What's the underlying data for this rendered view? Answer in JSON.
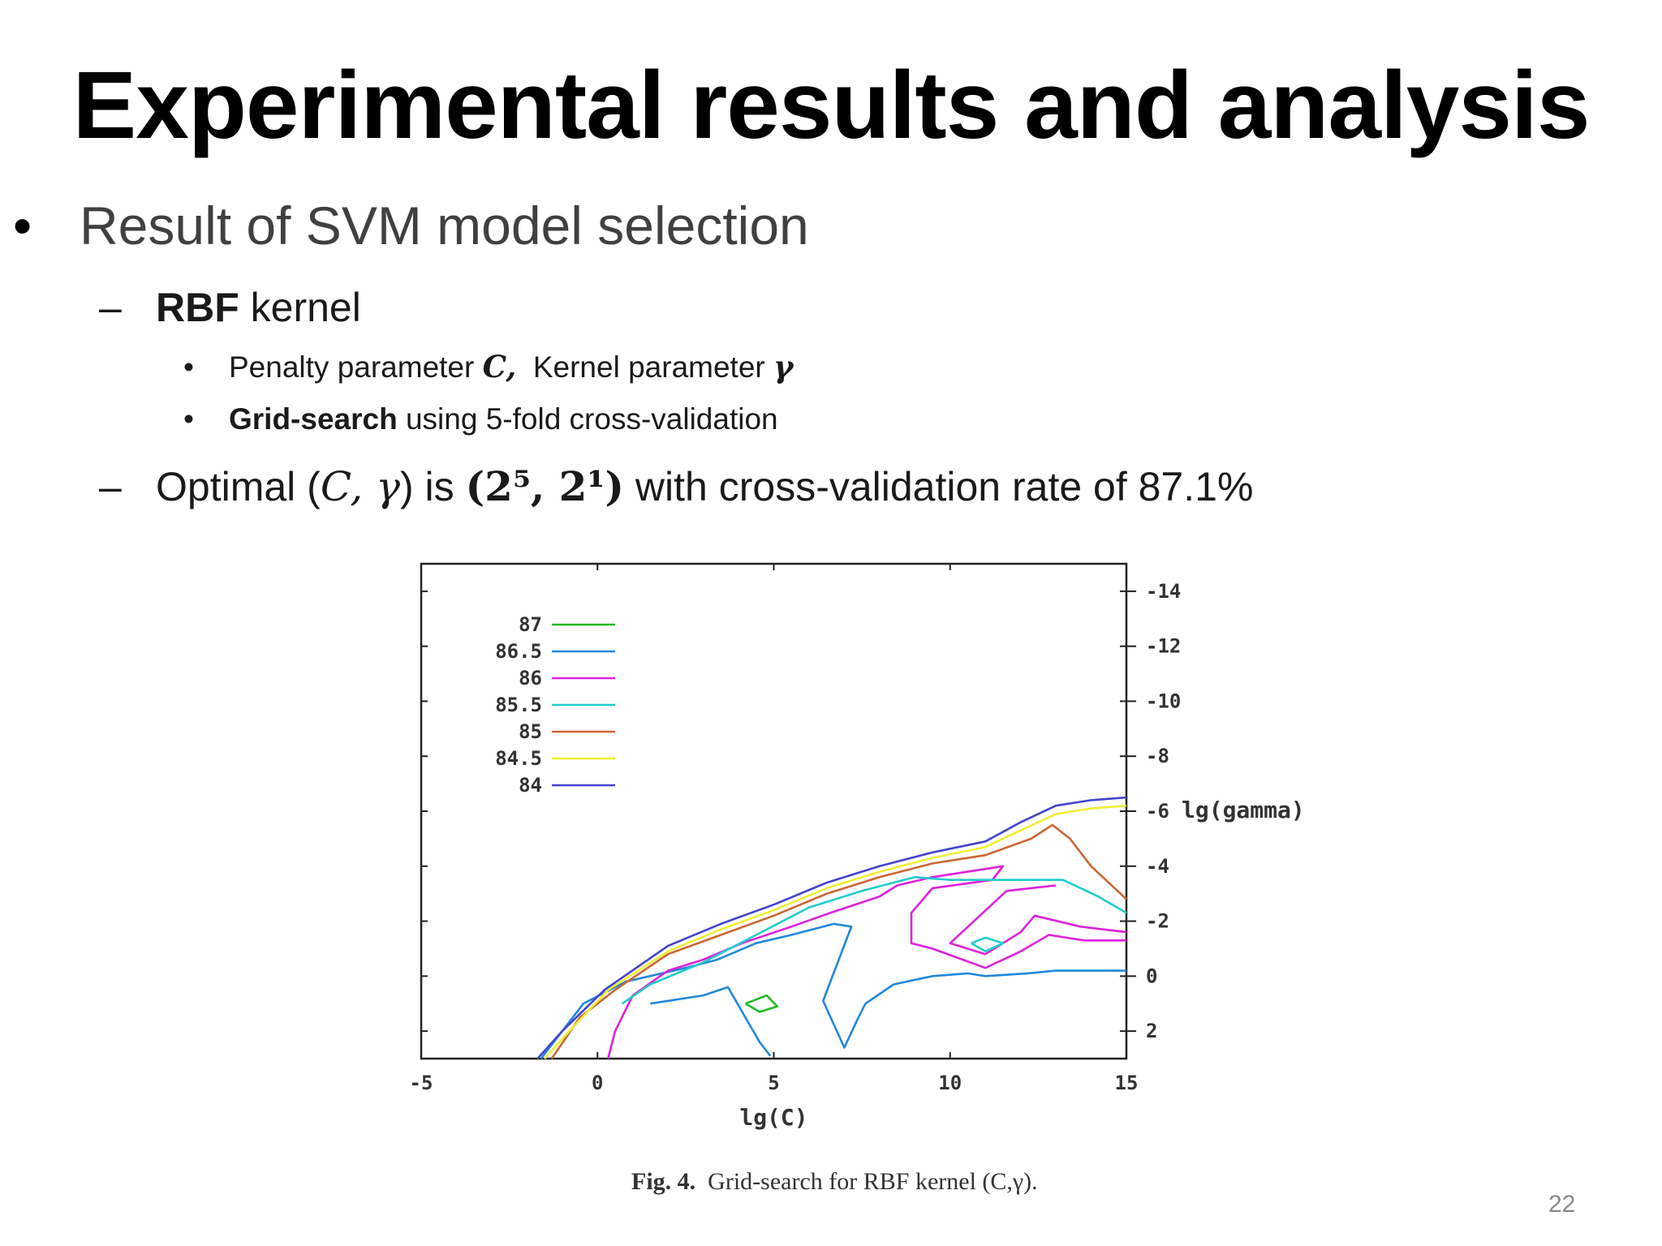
{
  "slide": {
    "title": "Experimental results and analysis",
    "page_number": "22"
  },
  "bullets": {
    "l1": "Result of SVM model selection",
    "rbf_bold": "RBF",
    "rbf_rest": " kernel",
    "penalty_text": "Penalty parameter ",
    "penalty_sym": "C,",
    "kernel_text": "  Kernel parameter ",
    "kernel_sym": "γ",
    "grid_bold": "Grid-search",
    "grid_rest": " using 5-fold cross-validation",
    "opt_pre": "Optimal (",
    "opt_sym": "C, γ",
    "opt_mid": ") is ",
    "opt_val": "(2⁵, 2¹)",
    "opt_post": " with cross-validation rate of 87.1%"
  },
  "figure": {
    "caption_bold": "Fig. 4.",
    "caption_rest": "  Grid-search for RBF kernel (C,γ)."
  },
  "chart_data": {
    "type": "contour",
    "xlabel": "lg(C)",
    "ylabel": "lg(gamma)",
    "xlim": [
      -5,
      15
    ],
    "ylim": [
      3,
      -15
    ],
    "x_ticks": [
      "-5",
      "0",
      "5",
      "10",
      "15"
    ],
    "y_ticks": [
      "-14",
      "-12",
      "-10",
      "-8",
      "-6",
      "-4",
      "-2",
      "0",
      "2"
    ],
    "legend_position": "top-left",
    "series": [
      {
        "name": "87",
        "color": "#22bb22",
        "segments": [
          [
            [
              4.2,
              1.0
            ],
            [
              4.8,
              0.7
            ],
            [
              5.1,
              1.1
            ],
            [
              4.6,
              1.3
            ],
            [
              4.2,
              1.0
            ]
          ]
        ]
      },
      {
        "name": "86.5",
        "color": "#2288dd",
        "segments": [
          [
            [
              -1.6,
              3.0
            ],
            [
              -0.4,
              1.0
            ],
            [
              0.8,
              0.2
            ],
            [
              2.5,
              -0.3
            ],
            [
              3.4,
              -0.6
            ],
            [
              4.5,
              -1.2
            ],
            [
              5.5,
              -1.5
            ],
            [
              6.7,
              -1.9
            ],
            [
              7.2,
              -1.8
            ],
            [
              6.4,
              0.9
            ],
            [
              7.0,
              2.6
            ],
            [
              7.4,
              1.5
            ],
            [
              7.6,
              1.0
            ],
            [
              8.4,
              0.3
            ],
            [
              9.5,
              0.0
            ],
            [
              10.5,
              -0.1
            ],
            [
              11.0,
              0.0
            ],
            [
              12.2,
              -0.1
            ],
            [
              13.0,
              -0.2
            ],
            [
              14.0,
              -0.2
            ],
            [
              15.0,
              -0.2
            ]
          ],
          [
            [
              1.5,
              1.0
            ],
            [
              3.0,
              0.7
            ],
            [
              3.7,
              0.4
            ],
            [
              4.6,
              2.4
            ],
            [
              4.9,
              2.9
            ]
          ]
        ]
      },
      {
        "name": "86",
        "color": "#dd22dd",
        "segments": [
          [
            [
              0.3,
              3.0
            ],
            [
              0.5,
              2.0
            ],
            [
              1.0,
              0.7
            ],
            [
              2.0,
              -0.2
            ],
            [
              3.0,
              -0.6
            ],
            [
              4.1,
              -1.2
            ],
            [
              5.5,
              -1.8
            ],
            [
              6.6,
              -2.3
            ],
            [
              8.0,
              -2.9
            ],
            [
              8.5,
              -3.3
            ],
            [
              9.5,
              -3.6
            ],
            [
              11.5,
              -4.0
            ],
            [
              11.2,
              -3.5
            ],
            [
              9.5,
              -3.2
            ],
            [
              8.9,
              -2.3
            ],
            [
              8.9,
              -1.2
            ],
            [
              9.5,
              -1.0
            ],
            [
              11.0,
              -0.3
            ],
            [
              12.0,
              -0.9
            ],
            [
              12.8,
              -1.5
            ],
            [
              13.8,
              -1.3
            ],
            [
              15.0,
              -1.3
            ]
          ],
          [
            [
              15.0,
              -1.6
            ],
            [
              13.7,
              -1.8
            ],
            [
              12.4,
              -2.2
            ],
            [
              12.0,
              -1.6
            ],
            [
              11.0,
              -0.8
            ],
            [
              10.0,
              -1.2
            ],
            [
              11.6,
              -3.1
            ],
            [
              13.0,
              -3.3
            ]
          ]
        ]
      },
      {
        "name": "85.5",
        "color": "#22cccc",
        "segments": [
          [
            [
              0.7,
              1.0
            ],
            [
              1.5,
              0.3
            ],
            [
              3.0,
              -0.5
            ],
            [
              4.5,
              -1.5
            ],
            [
              6.0,
              -2.5
            ],
            [
              7.5,
              -3.1
            ],
            [
              9.0,
              -3.6
            ],
            [
              10.0,
              -3.5
            ],
            [
              12.0,
              -3.5
            ],
            [
              13.2,
              -3.5
            ],
            [
              14.2,
              -2.9
            ],
            [
              15.0,
              -2.3
            ]
          ],
          [
            [
              10.6,
              -1.2
            ],
            [
              11.0,
              -1.4
            ],
            [
              11.5,
              -1.2
            ],
            [
              11.0,
              -0.9
            ],
            [
              10.6,
              -1.2
            ]
          ]
        ]
      },
      {
        "name": "85",
        "color": "#cc6633",
        "segments": [
          [
            [
              -1.3,
              3.0
            ],
            [
              -0.5,
              1.5
            ],
            [
              0.5,
              0.5
            ],
            [
              2.0,
              -0.8
            ],
            [
              3.5,
              -1.5
            ],
            [
              5.0,
              -2.2
            ],
            [
              6.5,
              -3.0
            ],
            [
              8.0,
              -3.6
            ],
            [
              9.5,
              -4.1
            ],
            [
              11.0,
              -4.4
            ],
            [
              12.3,
              -5.0
            ],
            [
              12.9,
              -5.5
            ],
            [
              13.4,
              -5.0
            ],
            [
              14.0,
              -4.0
            ],
            [
              15.0,
              -2.8
            ]
          ]
        ]
      },
      {
        "name": "84.5",
        "color": "#eeee33",
        "segments": [
          [
            [
              -1.5,
              3.0
            ],
            [
              -0.8,
              2.0
            ],
            [
              0.3,
              0.5
            ],
            [
              2.0,
              -0.9
            ],
            [
              3.5,
              -1.7
            ],
            [
              5.0,
              -2.4
            ],
            [
              6.5,
              -3.2
            ],
            [
              8.0,
              -3.8
            ],
            [
              9.5,
              -4.3
            ],
            [
              11.0,
              -4.7
            ],
            [
              12.0,
              -5.3
            ],
            [
              13.0,
              -5.9
            ],
            [
              14.0,
              -6.1
            ],
            [
              15.0,
              -6.2
            ]
          ]
        ]
      },
      {
        "name": "84",
        "color": "#4444cc",
        "segments": [
          [
            [
              -1.7,
              3.0
            ],
            [
              -1.0,
              2.0
            ],
            [
              0.2,
              0.5
            ],
            [
              2.0,
              -1.1
            ],
            [
              3.5,
              -1.9
            ],
            [
              5.0,
              -2.6
            ],
            [
              6.5,
              -3.4
            ],
            [
              8.0,
              -4.0
            ],
            [
              9.5,
              -4.5
            ],
            [
              11.0,
              -4.9
            ],
            [
              12.0,
              -5.6
            ],
            [
              13.0,
              -6.2
            ],
            [
              14.0,
              -6.4
            ],
            [
              15.0,
              -6.5
            ]
          ]
        ]
      }
    ]
  }
}
